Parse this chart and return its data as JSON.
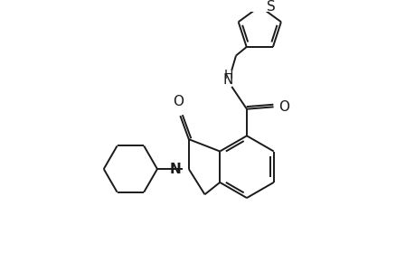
{
  "bg_color": "#ffffff",
  "line_color": "#1a1a1a",
  "line_width": 1.4,
  "font_size": 10,
  "fig_width": 4.6,
  "fig_height": 3.0,
  "dpi": 100,
  "xlim": [
    0,
    9.2
  ],
  "ylim": [
    0,
    6.0
  ]
}
